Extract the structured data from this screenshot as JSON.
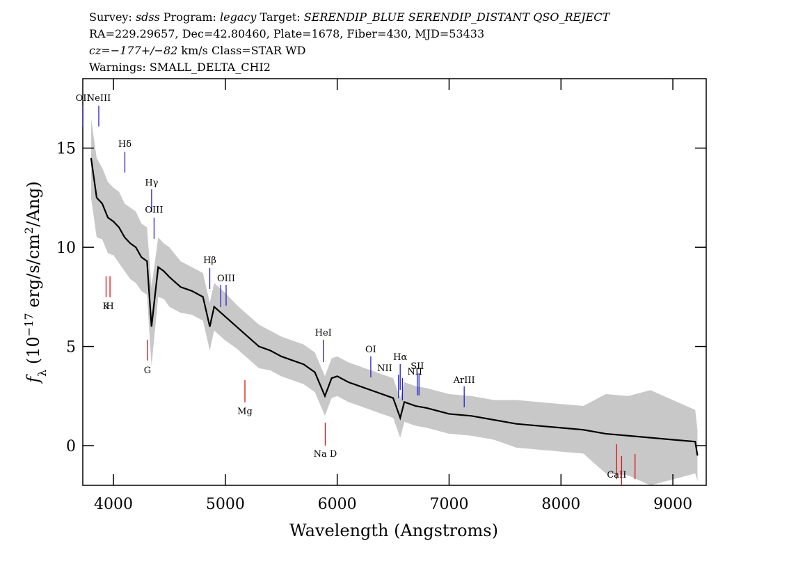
{
  "chart_data": {
    "type": "line",
    "title_lines": [
      [
        {
          "text": "Survey: "
        },
        {
          "text": "sdss",
          "italic": true
        },
        {
          "text": " Program: "
        },
        {
          "text": "legacy",
          "italic": true
        },
        {
          "text": " Target: "
        },
        {
          "text": "SERENDIP_BLUE SERENDIP_DISTANT QSO_REJECT",
          "italic": true
        }
      ],
      [
        {
          "text": "RA=229.29657, Dec=42.80460, Plate=1678, Fiber=430, MJD=53433"
        }
      ],
      [
        {
          "text": "cz=−177+/−82",
          "italic": true
        },
        {
          "text": " km/s Class=STAR WD"
        }
      ],
      [
        {
          "text": "Warnings: SMALL_DELTA_CHI2"
        }
      ]
    ],
    "xlabel": "Wavelength (Angstroms)",
    "ylabel": [
      {
        "text": "f",
        "style": "italic"
      },
      {
        "text": "λ",
        "style": "sub"
      },
      {
        "text": " (10"
      },
      {
        "text": "−17",
        "style": "sup"
      },
      {
        "text": " erg/s/cm"
      },
      {
        "text": "2",
        "style": "sup"
      },
      {
        "text": "/Ang)"
      }
    ],
    "xlim": [
      3726,
      9298
    ],
    "ylim": [
      -2.0,
      18.5
    ],
    "xticks": [
      4000,
      5000,
      6000,
      7000,
      8000,
      9000
    ],
    "yticks": [
      0,
      5,
      10,
      15
    ],
    "x": [
      3800,
      3850,
      3900,
      3950,
      4000,
      4050,
      4100,
      4150,
      4200,
      4250,
      4300,
      4340,
      4400,
      4450,
      4500,
      4600,
      4700,
      4800,
      4861,
      4900,
      5000,
      5100,
      5200,
      5300,
      5400,
      5500,
      5600,
      5700,
      5800,
      5890,
      5950,
      6000,
      6100,
      6200,
      6300,
      6400,
      6500,
      6563,
      6600,
      6700,
      6800,
      7000,
      7200,
      7400,
      7600,
      7800,
      8000,
      8200,
      8400,
      8600,
      8800,
      9000,
      9200,
      9220
    ],
    "series": [
      {
        "color": "#000000",
        "values": [
          14.5,
          12.5,
          12.2,
          11.5,
          11.3,
          11.0,
          10.5,
          10.2,
          10.0,
          9.5,
          9.3,
          6.0,
          9.0,
          8.8,
          8.5,
          8.0,
          7.8,
          7.5,
          6.0,
          7.0,
          6.5,
          6.0,
          5.5,
          5.0,
          4.8,
          4.5,
          4.3,
          4.1,
          3.7,
          2.5,
          3.4,
          3.5,
          3.2,
          3.0,
          2.8,
          2.6,
          2.4,
          1.4,
          2.2,
          2.0,
          1.9,
          1.6,
          1.5,
          1.3,
          1.1,
          1.0,
          0.9,
          0.8,
          0.6,
          0.5,
          0.4,
          0.3,
          0.2,
          -0.5
        ]
      }
    ],
    "band": {
      "color": "#c8c8c8",
      "upper": [
        16.5,
        14.5,
        14.0,
        13.3,
        13.0,
        12.8,
        12.2,
        12.0,
        11.8,
        11.2,
        11.0,
        8.0,
        10.5,
        10.2,
        10.0,
        9.3,
        9.0,
        8.7,
        7.2,
        8.2,
        7.7,
        7.1,
        6.6,
        6.1,
        5.8,
        5.5,
        5.3,
        5.1,
        4.7,
        3.5,
        4.4,
        4.5,
        4.2,
        4.0,
        3.8,
        3.6,
        3.4,
        2.4,
        3.2,
        3.0,
        2.9,
        2.6,
        2.5,
        2.3,
        2.3,
        2.2,
        2.1,
        2.0,
        2.6,
        2.5,
        2.8,
        2.3,
        1.8,
        0.8
      ],
      "lower": [
        12.5,
        10.5,
        10.4,
        9.7,
        9.6,
        9.2,
        8.8,
        8.4,
        8.2,
        7.8,
        7.6,
        4.0,
        7.5,
        7.4,
        7.0,
        6.7,
        6.6,
        6.3,
        4.8,
        5.8,
        5.3,
        4.9,
        4.4,
        3.9,
        3.8,
        3.5,
        3.3,
        3.1,
        2.7,
        1.5,
        2.4,
        2.5,
        2.2,
        2.0,
        1.8,
        1.6,
        1.4,
        0.4,
        1.2,
        1.0,
        0.9,
        0.6,
        0.5,
        0.3,
        -0.1,
        -0.2,
        -0.3,
        -0.4,
        -1.4,
        -1.5,
        -2.0,
        -1.7,
        -1.4,
        -1.8
      ]
    },
    "line_markers": [
      {
        "label": "OII",
        "wavelength": 3727,
        "color": "#2020d0",
        "y0": 16.09,
        "y1": 17.14,
        "label_y": 17.56
      },
      {
        "label": "NeIII",
        "wavelength": 3869,
        "color": "#2020d0",
        "y0": 16.09,
        "y1": 17.14,
        "label_y": 17.56
      },
      {
        "label": "Hδ",
        "wavelength": 4102,
        "color": "#2020d0",
        "y0": 13.77,
        "y1": 14.82,
        "label_y": 15.24
      },
      {
        "label": "Hγ",
        "wavelength": 4341,
        "color": "#2020d0",
        "y0": 11.77,
        "y1": 12.93,
        "label_y": 13.28
      },
      {
        "label": "OIII",
        "wavelength": 4363,
        "color": "#2020d0",
        "y0": 10.43,
        "y1": 11.49,
        "label_y": 11.91
      },
      {
        "label": "K",
        "wavelength": 3934,
        "color": "#e01010",
        "y0": 7.48,
        "y1": 8.54,
        "label_y": 7.06
      },
      {
        "label": "H",
        "wavelength": 3969,
        "color": "#e01010",
        "y0": 7.48,
        "y1": 8.54,
        "label_y": 7.06
      },
      {
        "label": "Hβ",
        "wavelength": 4861,
        "color": "#2020d0",
        "y0": 7.9,
        "y1": 8.96,
        "label_y": 9.38
      },
      {
        "wavelength": 4959,
        "color": "#2020d0",
        "y0": 6.99,
        "y1": 8.11
      },
      {
        "label": "OIII",
        "wavelength": 5007,
        "color": "#2020d0",
        "y0": 7.06,
        "y1": 8.11,
        "label_y": 8.46
      },
      {
        "label": "G",
        "wavelength": 4304,
        "color": "#e01010",
        "y0": 4.29,
        "y1": 5.34,
        "label_y": 3.83
      },
      {
        "label": "HeI",
        "wavelength": 5876,
        "color": "#2020d0",
        "y0": 4.21,
        "y1": 5.34,
        "label_y": 5.73
      },
      {
        "label": "Mg",
        "wavelength": 5175,
        "color": "#e01010",
        "y0": 2.18,
        "y1": 3.3,
        "label_y": 1.76
      },
      {
        "label": "Na  D",
        "wavelength": 5893,
        "color": "#e01010",
        "y0": 0,
        "y1": 1.16,
        "label_y": -0.39
      },
      {
        "label": "OI",
        "wavelength": 6300,
        "color": "#2020d0",
        "y0": 3.44,
        "y1": 4.5,
        "label_y": 4.88
      },
      {
        "label": "NII",
        "wavelength": 6548,
        "color": "#2020d0",
        "y0": 2.39,
        "y1": 3.58,
        "label_y": 3.93,
        "anchor": "end"
      },
      {
        "label": "Hα",
        "wavelength": 6563,
        "color": "#2020d0",
        "y0": 2.81,
        "y1": 4.11,
        "label_y": 4.5
      },
      {
        "label": "NII",
        "wavelength": 6583,
        "color": "#2020d0",
        "y0": 2.28,
        "y1": 3.41,
        "label_y": 3.76,
        "anchor": "start"
      },
      {
        "label": "SII",
        "wavelength": 6716,
        "color": "#2020d0",
        "y0": 2.53,
        "y1": 3.65,
        "label_y": 4.04
      },
      {
        "wavelength": 6731,
        "color": "#2020d0",
        "y0": 2.53,
        "y1": 3.65
      },
      {
        "label": "ArIII",
        "wavelength": 7135,
        "color": "#2020d0",
        "y0": 1.93,
        "y1": 2.99,
        "label_y": 3.34
      },
      {
        "label": "CaII",
        "wavelength": 8498,
        "color": "#e01010",
        "y0": -1.69,
        "y1": 0.07,
        "label_y": -1.44
      },
      {
        "wavelength": 8542,
        "color": "#e01010",
        "y0": -2.0,
        "y1": -0.53
      },
      {
        "wavelength": 8662,
        "color": "#e01010",
        "y0": -1.69,
        "y1": -0.42
      }
    ]
  }
}
